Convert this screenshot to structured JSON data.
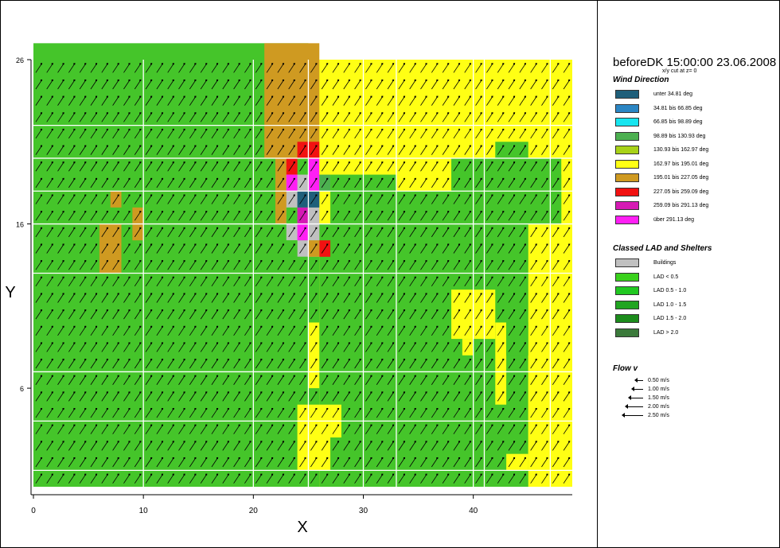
{
  "chart_data": {
    "type": "heatmap",
    "xlabel": "X",
    "ylabel": "Y",
    "xticks": [
      "0",
      "10",
      "20",
      "30",
      "40"
    ],
    "yticks": [
      "26",
      "16",
      "6"
    ],
    "xlim": [
      0,
      49
    ],
    "ylim": [
      0,
      26
    ],
    "grid": true,
    "legend_position": "right",
    "title": "beforeDK 15:00:00 23.06.2008",
    "subtitle": "x/y cut at z= 0",
    "wind_direction_legend": {
      "heading": "Wind Direction",
      "classes": [
        {
          "label": "unter 34.81 deg",
          "color": "#1f5f7a"
        },
        {
          "label": "34.81 bis 66.85 deg",
          "color": "#2b86c4"
        },
        {
          "label": "66.85 bis 98.89 deg",
          "color": "#17e5ef"
        },
        {
          "label": "98.89 bis 130.93 deg",
          "color": "#4cb050"
        },
        {
          "label": "130.93 bis 162.97 deg",
          "color": "#a8d218"
        },
        {
          "label": "162.97 bis 195.01 deg",
          "color": "#ffff14"
        },
        {
          "label": "195.01 bis 227.05 deg",
          "color": "#cf9a21"
        },
        {
          "label": "227.05 bis 259.09 deg",
          "color": "#f21111"
        },
        {
          "label": "259.09 bis 291.13 deg",
          "color": "#d51ab4"
        },
        {
          "label": "über 291.13 deg",
          "color": "#ff1ff4"
        }
      ]
    },
    "lad_legend": {
      "heading": "Classed LAD and Shelters",
      "classes": [
        {
          "label": "Buildings",
          "color": "#c0c0c0"
        },
        {
          "label": "LAD < 0.5",
          "color": "#3ad11c"
        },
        {
          "label": "LAD 0.5 - 1.0",
          "color": "#21c821"
        },
        {
          "label": "LAD 1.0 - 1.5",
          "color": "#21a521"
        },
        {
          "label": "LAD 1.5 - 2.0",
          "color": "#1c8c1c"
        },
        {
          "label": "LAD > 2.0",
          "color": "#3b7a3b"
        }
      ]
    },
    "flow_legend": {
      "heading": "Flow v",
      "items": [
        {
          "label": "0.50 m/s",
          "value": 0.5
        },
        {
          "label": "1.00 m/s",
          "value": 1.0
        },
        {
          "label": "1.50 m/s",
          "value": 1.5
        },
        {
          "label": "2.00 m/s",
          "value": 2.0
        },
        {
          "label": "2.50 m/s",
          "value": 2.5
        }
      ]
    },
    "grid_size": [
      49,
      26
    ],
    "default_class": "wd_162_195",
    "regions": [
      {
        "class": "lad",
        "cells": [
          [
            0,
            0,
            25,
            27
          ]
        ]
      },
      {
        "class": "lad",
        "cells": [
          [
            1,
            6,
            6,
            12
          ],
          [
            2,
            6,
            5,
            11
          ],
          [
            4,
            11,
            7,
            13
          ]
        ]
      },
      {
        "class": "wd_195_227",
        "cells": [
          [
            21,
            20,
            26,
            27
          ],
          [
            22,
            16,
            24,
            21
          ],
          [
            6,
            13,
            8,
            16
          ],
          [
            9,
            15,
            10,
            17
          ],
          [
            7,
            17,
            8,
            18
          ]
        ]
      },
      {
        "class": "lad",
        "cells": [
          [
            26,
            0,
            45,
            16
          ],
          [
            24,
            0,
            25,
            10
          ],
          [
            25,
            10,
            26,
            16
          ],
          [
            27,
            16,
            33,
            19
          ],
          [
            33,
            16,
            38,
            18
          ],
          [
            38,
            16,
            48,
            20
          ],
          [
            42,
            20,
            45,
            21
          ],
          [
            45,
            16,
            48,
            19
          ]
        ]
      },
      {
        "class": "lad",
        "cells": [
          [
            5,
            0,
            26,
            6
          ],
          [
            8,
            6,
            17,
            7
          ],
          [
            9,
            7,
            11,
            8
          ],
          [
            4,
            1,
            5,
            3
          ],
          [
            5,
            6,
            8,
            7
          ]
        ]
      },
      {
        "class": "wd_162_195",
        "cells": [
          [
            24,
            1,
            27,
            5
          ],
          [
            27,
            3,
            28,
            5
          ],
          [
            38,
            9,
            42,
            12
          ],
          [
            39,
            8,
            40,
            9
          ],
          [
            45,
            1,
            49,
            10
          ],
          [
            43,
            1,
            45,
            2
          ],
          [
            42,
            5,
            43,
            10
          ],
          [
            47,
            10,
            49,
            14
          ]
        ]
      },
      {
        "class": "lad",
        "cells": [
          [
            43,
            8,
            45,
            10
          ]
        ]
      },
      {
        "class": "buildings",
        "cells": [
          [
            23,
            15,
            26,
            18
          ],
          [
            24,
            14,
            26,
            15
          ],
          [
            23,
            18,
            25,
            19
          ]
        ]
      },
      {
        "class": "lad",
        "cells": [
          [
            23,
            14,
            24,
            15
          ],
          [
            23,
            12,
            25,
            14
          ],
          [
            23,
            16,
            24,
            17
          ]
        ]
      },
      {
        "class": "wd_227_259",
        "cells": [
          [
            23,
            19,
            24,
            20
          ],
          [
            24,
            20,
            25,
            21
          ],
          [
            25,
            20,
            26,
            21
          ],
          [
            26,
            14,
            27,
            15
          ]
        ]
      },
      {
        "class": "wd_291",
        "cells": [
          [
            25,
            18,
            26,
            20
          ],
          [
            23,
            18,
            24,
            19
          ],
          [
            24,
            15,
            25,
            16
          ]
        ]
      },
      {
        "class": "wd_259_291",
        "cells": [
          [
            24,
            16,
            25,
            17
          ]
        ]
      },
      {
        "class": "wd_lt_34",
        "cells": [
          [
            25,
            17,
            26,
            18
          ],
          [
            24,
            17,
            25,
            18
          ]
        ]
      },
      {
        "class": "wd_195_227",
        "cells": [
          [
            25,
            14,
            26,
            15
          ]
        ]
      },
      {
        "class": "wd_162_195",
        "cells": [
          [
            26,
            19,
            27,
            20
          ]
        ]
      },
      {
        "class": "wd_98_130",
        "cells": [
          [
            26,
            18,
            27,
            19
          ]
        ]
      }
    ]
  }
}
